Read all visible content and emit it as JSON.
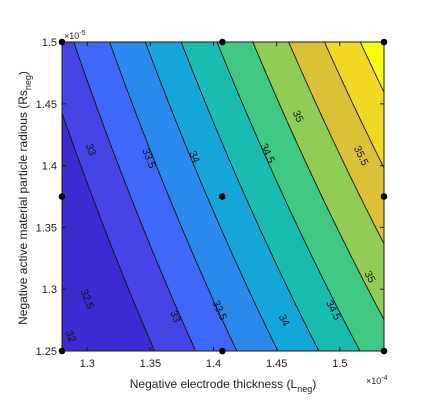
{
  "chart_data": {
    "type": "heatmap",
    "subtype": "filled-contour",
    "xlabel": "Negative electrode thickness (L",
    "xlabel_sub": "neg",
    "xlabel_tail": ")",
    "ylabel": "Negative active material particle radious (Rs",
    "ylabel_sub": "neg",
    "ylabel_tail": ")",
    "x_exponent_base": "×10",
    "x_exponent_power": "-4",
    "y_exponent_base": "×10",
    "y_exponent_power": "-5",
    "xlim": [
      1.28,
      1.535
    ],
    "ylim": [
      1.25,
      1.5
    ],
    "xticks": [
      1.3,
      1.35,
      1.4,
      1.45,
      1.5
    ],
    "xtick_labels": [
      "1.3",
      "1.35",
      "1.4",
      "1.45",
      "1.5"
    ],
    "yticks": [
      1.25,
      1.3,
      1.35,
      1.4,
      1.45,
      1.5
    ],
    "ytick_labels": [
      "1.25",
      "1.3",
      "1.35",
      "1.4",
      "1.45",
      "1.5"
    ],
    "field": {
      "base_value": 33.2,
      "x_ref": 1.407,
      "y_ref": 1.375,
      "x_coef": 16.5,
      "y_coef": 7.0,
      "xy_coef": 9.0
    },
    "levels": [
      31.5,
      32,
      32.5,
      33,
      33.5,
      34,
      34.5,
      35,
      35.5,
      36
    ],
    "level_colors": [
      "#3d2ad0",
      "#4644e4",
      "#3e68f5",
      "#2a89ec",
      "#14a6d9",
      "#18bcb0",
      "#41c882",
      "#91cc55",
      "#dcc036",
      "#f2d725",
      "#f9fb0e"
    ],
    "contour_labels": [
      {
        "text": "32",
        "level": 32,
        "x": 1.287,
        "y": 1.262
      },
      {
        "text": "32.5",
        "level": 32.5,
        "x": 1.3,
        "y": 1.292
      },
      {
        "text": "33",
        "level": 33,
        "x": 1.37,
        "y": 1.278
      },
      {
        "text": "33",
        "level": 33,
        "x": 1.303,
        "y": 1.413
      },
      {
        "text": "33.5",
        "level": 33.5,
        "x": 1.405,
        "y": 1.283
      },
      {
        "text": "33.5",
        "level": 33.5,
        "x": 1.349,
        "y": 1.406
      },
      {
        "text": "34",
        "level": 34,
        "x": 1.456,
        "y": 1.275
      },
      {
        "text": "34",
        "level": 34,
        "x": 1.385,
        "y": 1.407
      },
      {
        "text": "34.5",
        "level": 34.5,
        "x": 1.495,
        "y": 1.283
      },
      {
        "text": "34.5",
        "level": 34.5,
        "x": 1.443,
        "y": 1.41
      },
      {
        "text": "35",
        "level": 35,
        "x": 1.524,
        "y": 1.31
      },
      {
        "text": "35",
        "level": 35,
        "x": 1.467,
        "y": 1.44
      },
      {
        "text": "35.5",
        "level": 35.5,
        "x": 1.517,
        "y": 1.408
      }
    ],
    "sample_points": [
      {
        "x": 1.28,
        "y": 1.5
      },
      {
        "x": 1.407,
        "y": 1.5
      },
      {
        "x": 1.535,
        "y": 1.5
      },
      {
        "x": 1.28,
        "y": 1.375
      },
      {
        "x": 1.407,
        "y": 1.375
      },
      {
        "x": 1.535,
        "y": 1.375
      },
      {
        "x": 1.28,
        "y": 1.25
      },
      {
        "x": 1.407,
        "y": 1.25
      },
      {
        "x": 1.535,
        "y": 1.25
      }
    ],
    "grid": false,
    "legend": "none"
  }
}
